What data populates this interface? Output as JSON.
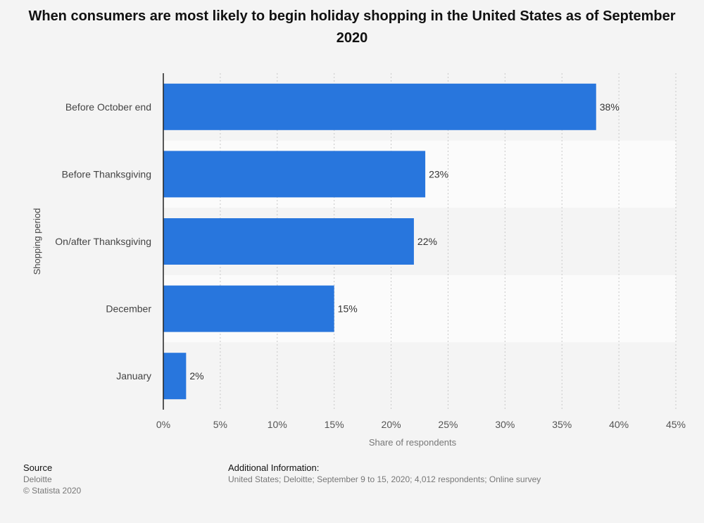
{
  "chart_data": {
    "type": "bar",
    "orientation": "horizontal",
    "title": "When consumers are most likely to begin holiday shopping in the United States as of September 2020",
    "categories": [
      "Before October end",
      "Before Thanksgiving",
      "On/after Thanksgiving",
      "December",
      "January"
    ],
    "values": [
      38,
      23,
      22,
      15,
      2
    ],
    "value_labels": [
      "38%",
      "23%",
      "22%",
      "15%",
      "2%"
    ],
    "xlabel": "Share of respondents",
    "ylabel": "Shopping period",
    "xlim": [
      0,
      45
    ],
    "xticks": [
      "0%",
      "5%",
      "10%",
      "15%",
      "20%",
      "25%",
      "30%",
      "35%",
      "40%",
      "45%"
    ],
    "grid": true,
    "bar_color": "#2876dd"
  },
  "footer": {
    "source_heading": "Source",
    "source_name": "Deloitte",
    "copyright": "© Statista 2020",
    "info_heading": "Additional Information:",
    "info_text": "United States; Deloitte; September 9 to 15, 2020; 4,012 respondents; Online survey"
  }
}
